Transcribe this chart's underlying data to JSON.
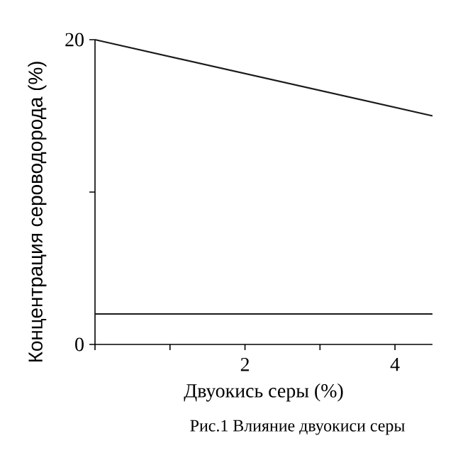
{
  "chart_data": {
    "type": "line",
    "xlabel": "Двуокись серы (%)",
    "ylabel": "Концентрация сероводорода (%)",
    "annotations": [
      "Рис.1 Влияние двуокиси серы"
    ],
    "x": [
      0,
      4.5
    ],
    "series": [
      {
        "color": "#1a1a1a",
        "values": [
          20,
          15
        ]
      },
      {
        "color": "#1a1a1a",
        "values": [
          2,
          2
        ]
      }
    ],
    "xlim": [
      0,
      4.5
    ],
    "ylim": [
      0,
      20
    ],
    "xticks": [
      {
        "value": 0,
        "label": null
      },
      {
        "value": 1,
        "label": null
      },
      2,
      {
        "value": 3,
        "label": null
      },
      4
    ],
    "yticks": [
      0,
      {
        "value": 10,
        "label": null
      },
      20
    ],
    "grid": false,
    "marker": "none",
    "line_style": "solid"
  }
}
